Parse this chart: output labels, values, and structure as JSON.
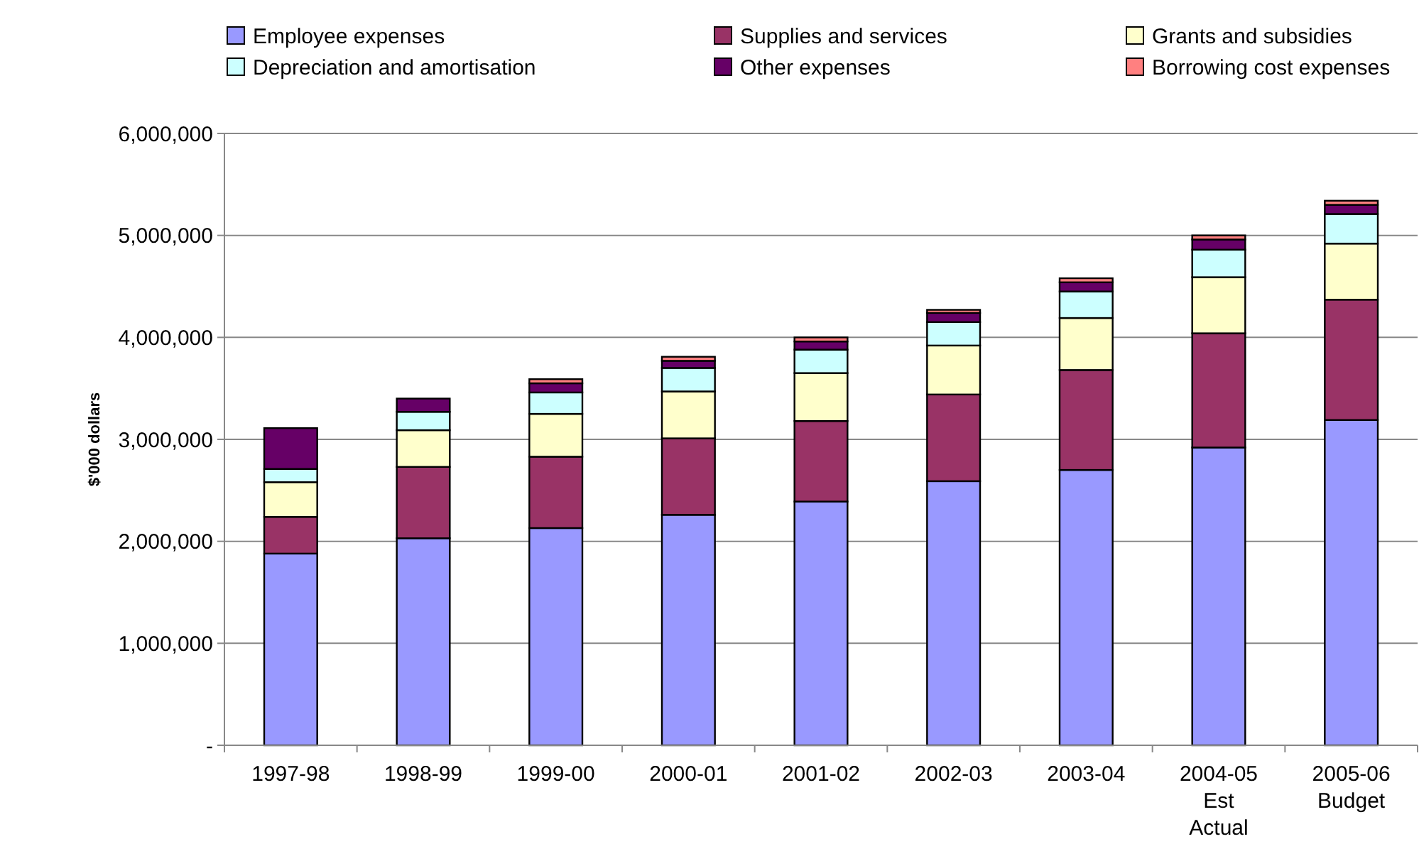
{
  "chart_data": {
    "type": "bar",
    "stacked": true,
    "ylabel": "$'000 dollars",
    "categories": [
      "1997-98",
      "1998-99",
      "1999-00",
      "2000-01",
      "2001-02",
      "2002-03",
      "2003-04",
      "2004-05\nEst\nActual",
      "2005-06\nBudget"
    ],
    "series": [
      {
        "name": "Employee expenses",
        "color": "#9999ff",
        "values": [
          1880000,
          2030000,
          2130000,
          2260000,
          2390000,
          2590000,
          2700000,
          2920000,
          3190000
        ]
      },
      {
        "name": "Supplies and services",
        "color": "#993366",
        "values": [
          360000,
          700000,
          700000,
          750000,
          790000,
          850000,
          980000,
          1120000,
          1180000
        ]
      },
      {
        "name": "Grants and subsidies",
        "color": "#ffffcc",
        "values": [
          340000,
          360000,
          420000,
          460000,
          470000,
          480000,
          510000,
          550000,
          550000
        ]
      },
      {
        "name": "Depreciation and amortisation",
        "color": "#ccffff",
        "values": [
          130000,
          180000,
          210000,
          230000,
          230000,
          230000,
          260000,
          270000,
          290000
        ]
      },
      {
        "name": "Other expenses",
        "color": "#660066",
        "values": [
          400000,
          130000,
          90000,
          70000,
          80000,
          90000,
          90000,
          100000,
          90000
        ]
      },
      {
        "name": "Borrowing cost expenses",
        "color": "#ff8080",
        "values": [
          0,
          0,
          40000,
          40000,
          40000,
          30000,
          40000,
          40000,
          40000
        ]
      }
    ],
    "ylim": [
      0,
      6000000
    ],
    "yticks": [
      {
        "value": 0,
        "label": "-"
      },
      {
        "value": 1000000,
        "label": "1,000,000"
      },
      {
        "value": 2000000,
        "label": "2,000,000"
      },
      {
        "value": 3000000,
        "label": "3,000,000"
      },
      {
        "value": 4000000,
        "label": "4,000,000"
      },
      {
        "value": 5000000,
        "label": "5,000,000"
      },
      {
        "value": 6000000,
        "label": "6,000,000"
      }
    ],
    "grid": "y",
    "legend": "top"
  }
}
